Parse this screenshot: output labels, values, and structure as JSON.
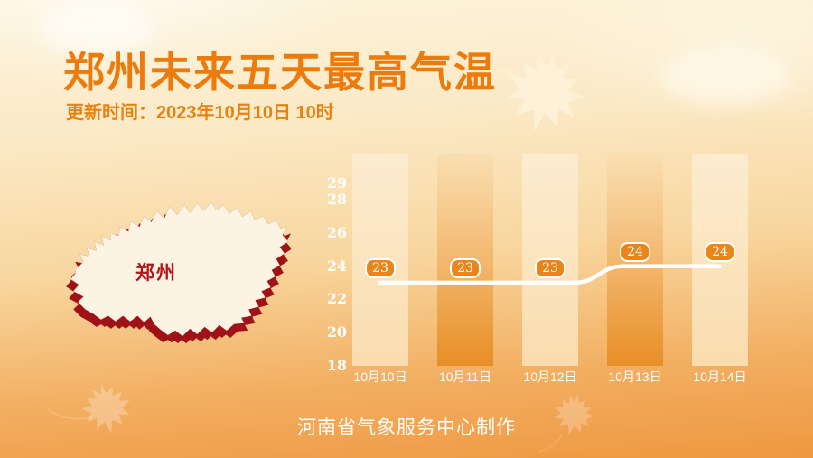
{
  "page": {
    "title": "郑州未来五天最高气温",
    "update_time": "更新时间：2023年10月10日 10时",
    "footer": "河南省气象服务中心制作"
  },
  "map": {
    "label": "郑州"
  },
  "chart_data": {
    "type": "line",
    "title": "郑州未来五天最高气温",
    "categories": [
      "10月10日",
      "10月11日",
      "10月12日",
      "10月13日",
      "10月14日"
    ],
    "series": [
      {
        "name": "最高气温",
        "values": [
          23,
          23,
          23,
          24,
          24
        ]
      }
    ],
    "value_labels": [
      "23",
      "23",
      "23",
      "24",
      "24"
    ],
    "yticks": [
      29,
      28,
      26,
      24,
      22,
      20,
      18
    ],
    "ylim": [
      18,
      29
    ],
    "grid": false,
    "legend_position": "none"
  },
  "colors": {
    "accent_title": "#EC7B0D",
    "badge_fill": "#E9861B",
    "line": "#FFFFFF",
    "bar_dark_bottom": "#E88E26",
    "bar_light": "#FBE6C4",
    "background_top": "#FDF4DC",
    "background_bottom": "#EF9841",
    "map_fill": "#FCF3E3",
    "map_side": "#A01218",
    "map_label_color": "#B3151A"
  },
  "icons": {
    "decorations": [
      "maple-leaf-icon",
      "maple-leaf-icon",
      "maple-leaf-icon",
      "cloud-icon",
      "cloud-icon"
    ]
  }
}
